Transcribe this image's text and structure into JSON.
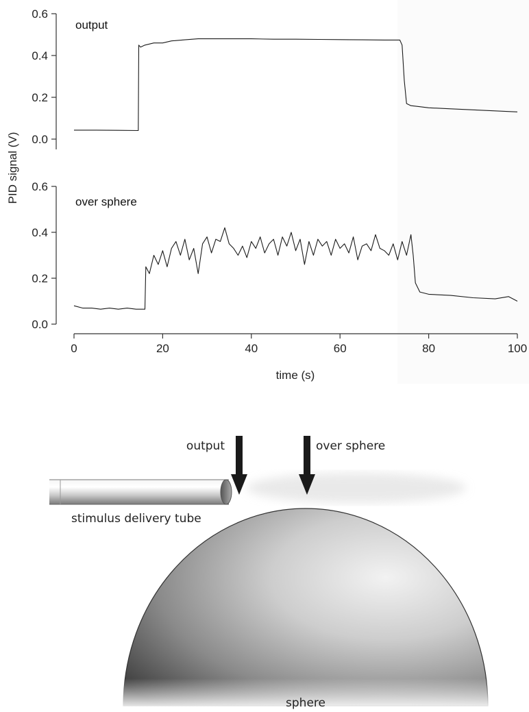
{
  "chart_data": [
    {
      "type": "line",
      "panel": "output",
      "annotation": "output",
      "ylabel": "PID signal (V)",
      "xlabel": "",
      "xlim": [
        0,
        100
      ],
      "ylim": [
        0,
        0.6
      ],
      "yticks": [
        "0.0",
        "0.2",
        "0.4",
        "0.6"
      ],
      "grid": false,
      "series": [
        {
          "x": [
            0,
            5,
            10,
            14.5,
            14.6,
            15,
            16,
            18,
            20,
            22,
            25,
            28,
            30,
            35,
            40,
            45,
            50,
            55,
            60,
            65,
            70,
            73.5,
            74,
            74.5,
            75,
            76,
            78,
            80,
            85,
            90,
            95,
            100
          ],
          "y": [
            0.043,
            0.043,
            0.042,
            0.041,
            0.45,
            0.44,
            0.45,
            0.46,
            0.46,
            0.47,
            0.475,
            0.48,
            0.48,
            0.48,
            0.48,
            0.478,
            0.478,
            0.477,
            0.476,
            0.475,
            0.474,
            0.474,
            0.45,
            0.28,
            0.17,
            0.16,
            0.155,
            0.15,
            0.145,
            0.14,
            0.135,
            0.13
          ]
        }
      ]
    },
    {
      "type": "line",
      "panel": "over sphere",
      "annotation": "over sphere",
      "xlabel": "time (s)",
      "xlim": [
        0,
        100
      ],
      "ylim": [
        0,
        0.6
      ],
      "xticks": [
        "0",
        "20",
        "40",
        "60",
        "80",
        "100"
      ],
      "yticks": [
        "0.0",
        "0.2",
        "0.4",
        "0.6"
      ],
      "grid": false,
      "series": [
        {
          "x": [
            0,
            2,
            4,
            6,
            8,
            10,
            12,
            14,
            16,
            16.2,
            17,
            18,
            19,
            20,
            21,
            22,
            23,
            24,
            25,
            26,
            27,
            28,
            29,
            30,
            31,
            32,
            33,
            34,
            35,
            36,
            37,
            38,
            39,
            40,
            41,
            42,
            43,
            44,
            45,
            46,
            47,
            48,
            49,
            50,
            51,
            52,
            53,
            54,
            55,
            56,
            57,
            58,
            59,
            60,
            61,
            62,
            63,
            64,
            65,
            66,
            67,
            68,
            69,
            70,
            71,
            72,
            73,
            74,
            75,
            76,
            76.5,
            77,
            78,
            80,
            85,
            90,
            95,
            98,
            100
          ],
          "y": [
            0.08,
            0.07,
            0.07,
            0.065,
            0.07,
            0.065,
            0.07,
            0.065,
            0.065,
            0.25,
            0.22,
            0.3,
            0.26,
            0.32,
            0.25,
            0.33,
            0.36,
            0.3,
            0.37,
            0.28,
            0.33,
            0.22,
            0.35,
            0.38,
            0.31,
            0.37,
            0.36,
            0.42,
            0.35,
            0.33,
            0.3,
            0.34,
            0.29,
            0.36,
            0.33,
            0.38,
            0.31,
            0.35,
            0.37,
            0.3,
            0.38,
            0.34,
            0.4,
            0.32,
            0.37,
            0.26,
            0.36,
            0.3,
            0.37,
            0.34,
            0.36,
            0.3,
            0.37,
            0.33,
            0.35,
            0.31,
            0.38,
            0.28,
            0.34,
            0.35,
            0.32,
            0.39,
            0.33,
            0.32,
            0.3,
            0.35,
            0.28,
            0.36,
            0.3,
            0.39,
            0.3,
            0.18,
            0.14,
            0.13,
            0.125,
            0.115,
            0.11,
            0.12,
            0.1
          ]
        }
      ]
    }
  ],
  "diagram": {
    "arrow_output_label": "output",
    "arrow_sphere_label": "over sphere",
    "tube_label": "stimulus delivery tube",
    "sphere_label": "sphere"
  }
}
